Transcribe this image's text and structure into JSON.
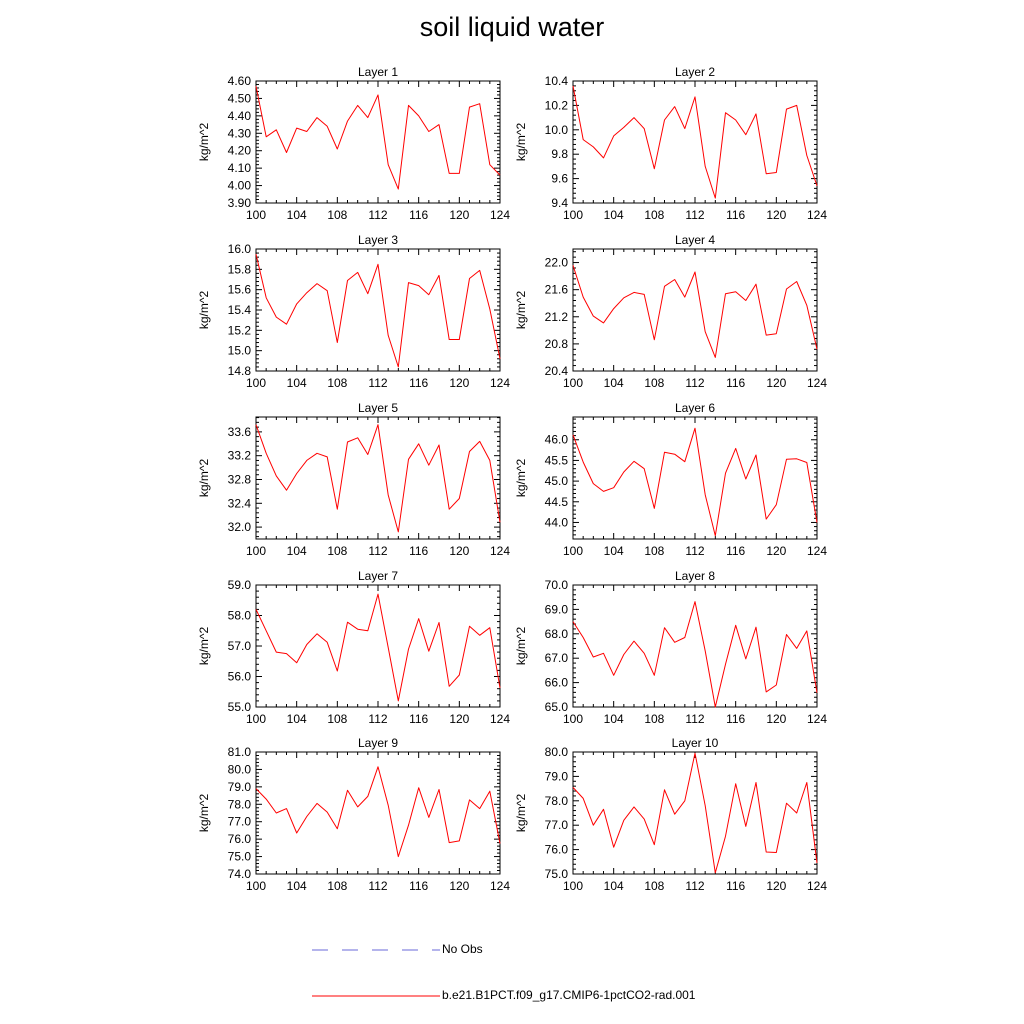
{
  "figure": {
    "title": "soil liquid water"
  },
  "legend": {
    "items": [
      {
        "label": "No Obs",
        "style": "dashed",
        "color": "#6a6ad8"
      },
      {
        "label": "b.e21.B1PCT.f09_g17.CMIP6-1pctCO2-rad.001",
        "style": "solid",
        "color": "#ff0000"
      }
    ]
  },
  "chart_data": [
    {
      "type": "line",
      "title": "Layer 1",
      "ylabel": "kg/m^2",
      "xlim": [
        100,
        124
      ],
      "x": [
        100,
        101,
        102,
        103,
        104,
        105,
        106,
        107,
        108,
        109,
        110,
        111,
        112,
        113,
        114,
        115,
        116,
        117,
        118,
        119,
        120,
        121,
        122,
        123,
        124
      ],
      "xticks": [
        "100",
        "104",
        "108",
        "112",
        "116",
        "120",
        "124"
      ],
      "ylim": [
        3.9,
        4.6
      ],
      "yticks": [
        "3.90",
        "4.00",
        "4.10",
        "4.20",
        "4.30",
        "4.40",
        "4.50",
        "4.60"
      ],
      "series": [
        {
          "color": "#ff0000",
          "values": [
            4.57,
            4.28,
            4.32,
            4.19,
            4.33,
            4.31,
            4.39,
            4.34,
            4.21,
            4.37,
            4.46,
            4.39,
            4.52,
            4.12,
            3.98,
            4.46,
            4.4,
            4.31,
            4.35,
            4.07,
            4.07,
            4.45,
            4.47,
            4.12,
            4.06
          ]
        }
      ]
    },
    {
      "type": "line",
      "title": "Layer 2",
      "ylabel": "kg/m^2",
      "xlim": [
        100,
        124
      ],
      "x": [
        100,
        101,
        102,
        103,
        104,
        105,
        106,
        107,
        108,
        109,
        110,
        111,
        112,
        113,
        114,
        115,
        116,
        117,
        118,
        119,
        120,
        121,
        122,
        123,
        124
      ],
      "xticks": [
        "100",
        "104",
        "108",
        "112",
        "116",
        "120",
        "124"
      ],
      "ylim": [
        9.4,
        10.4
      ],
      "yticks": [
        "9.4",
        "9.6",
        "9.8",
        "10.0",
        "10.2",
        "10.4"
      ],
      "series": [
        {
          "color": "#ff0000",
          "values": [
            10.36,
            9.92,
            9.86,
            9.77,
            9.95,
            10.02,
            10.1,
            10.01,
            9.68,
            10.08,
            10.19,
            10.01,
            10.27,
            9.7,
            9.44,
            10.14,
            10.08,
            9.96,
            10.13,
            9.64,
            9.65,
            10.17,
            10.2,
            9.79,
            9.54
          ]
        }
      ]
    },
    {
      "type": "line",
      "title": "Layer 3",
      "ylabel": "kg/m^2",
      "xlim": [
        100,
        124
      ],
      "x": [
        100,
        101,
        102,
        103,
        104,
        105,
        106,
        107,
        108,
        109,
        110,
        111,
        112,
        113,
        114,
        115,
        116,
        117,
        118,
        119,
        120,
        121,
        122,
        123,
        124
      ],
      "xticks": [
        "100",
        "104",
        "108",
        "112",
        "116",
        "120",
        "124"
      ],
      "ylim": [
        14.8,
        16.0
      ],
      "yticks": [
        "14.8",
        "15.0",
        "15.2",
        "15.4",
        "15.6",
        "15.8",
        "16.0"
      ],
      "series": [
        {
          "color": "#ff0000",
          "values": [
            15.95,
            15.52,
            15.33,
            15.26,
            15.46,
            15.57,
            15.66,
            15.59,
            15.08,
            15.69,
            15.77,
            15.56,
            15.85,
            15.15,
            14.84,
            15.67,
            15.64,
            15.55,
            15.74,
            15.11,
            15.11,
            15.71,
            15.79,
            15.41,
            14.92
          ]
        }
      ]
    },
    {
      "type": "line",
      "title": "Layer 4",
      "ylabel": "kg/m^2",
      "xlim": [
        100,
        124
      ],
      "x": [
        100,
        101,
        102,
        103,
        104,
        105,
        106,
        107,
        108,
        109,
        110,
        111,
        112,
        113,
        114,
        115,
        116,
        117,
        118,
        119,
        120,
        121,
        122,
        123,
        124
      ],
      "xticks": [
        "100",
        "104",
        "108",
        "112",
        "116",
        "120",
        "124"
      ],
      "ylim": [
        20.4,
        22.2
      ],
      "yticks": [
        "20.4",
        "20.8",
        "21.2",
        "21.6",
        "22.0"
      ],
      "series": [
        {
          "color": "#ff0000",
          "values": [
            21.96,
            21.49,
            21.21,
            21.11,
            21.32,
            21.48,
            21.56,
            21.53,
            20.86,
            21.65,
            21.75,
            21.49,
            21.86,
            20.98,
            20.6,
            21.54,
            21.57,
            21.44,
            21.68,
            20.93,
            20.95,
            21.61,
            21.72,
            21.37,
            20.72
          ]
        }
      ]
    },
    {
      "type": "line",
      "title": "Layer 5",
      "ylabel": "kg/m^2",
      "xlim": [
        100,
        124
      ],
      "x": [
        100,
        101,
        102,
        103,
        104,
        105,
        106,
        107,
        108,
        109,
        110,
        111,
        112,
        113,
        114,
        115,
        116,
        117,
        118,
        119,
        120,
        121,
        122,
        123,
        124
      ],
      "xticks": [
        "100",
        "104",
        "108",
        "112",
        "116",
        "120",
        "124"
      ],
      "ylim": [
        31.8,
        33.85
      ],
      "yticks": [
        "32.0",
        "32.4",
        "32.8",
        "33.2",
        "33.6"
      ],
      "series": [
        {
          "color": "#ff0000",
          "values": [
            33.72,
            33.24,
            32.86,
            32.62,
            32.9,
            33.12,
            33.24,
            33.18,
            32.3,
            33.43,
            33.5,
            33.22,
            33.72,
            32.54,
            31.92,
            33.14,
            33.4,
            33.04,
            33.38,
            32.3,
            32.48,
            33.27,
            33.44,
            33.12,
            32.08
          ]
        }
      ]
    },
    {
      "type": "line",
      "title": "Layer 6",
      "ylabel": "kg/m^2",
      "xlim": [
        100,
        124
      ],
      "x": [
        100,
        101,
        102,
        103,
        104,
        105,
        106,
        107,
        108,
        109,
        110,
        111,
        112,
        113,
        114,
        115,
        116,
        117,
        118,
        119,
        120,
        121,
        122,
        123,
        124
      ],
      "xticks": [
        "100",
        "104",
        "108",
        "112",
        "116",
        "120",
        "124"
      ],
      "ylim": [
        43.6,
        46.55
      ],
      "yticks": [
        "44.0",
        "44.5",
        "45.0",
        "45.5",
        "46.0"
      ],
      "series": [
        {
          "color": "#ff0000",
          "values": [
            46.12,
            45.46,
            44.94,
            44.75,
            44.84,
            45.22,
            45.48,
            45.3,
            44.34,
            45.7,
            45.65,
            45.47,
            46.28,
            44.67,
            43.68,
            45.19,
            45.79,
            45.05,
            45.63,
            44.08,
            44.43,
            45.53,
            45.54,
            45.45,
            44.0
          ]
        }
      ]
    },
    {
      "type": "line",
      "title": "Layer 7",
      "ylabel": "kg/m^2",
      "xlim": [
        100,
        124
      ],
      "x": [
        100,
        101,
        102,
        103,
        104,
        105,
        106,
        107,
        108,
        109,
        110,
        111,
        112,
        113,
        114,
        115,
        116,
        117,
        118,
        119,
        120,
        121,
        122,
        123,
        124
      ],
      "xticks": [
        "100",
        "104",
        "108",
        "112",
        "116",
        "120",
        "124"
      ],
      "ylim": [
        55.0,
        59.0
      ],
      "yticks": [
        "55.0",
        "56.0",
        "57.0",
        "58.0",
        "59.0"
      ],
      "series": [
        {
          "color": "#ff0000",
          "values": [
            58.2,
            57.5,
            56.8,
            56.75,
            56.45,
            57.05,
            57.4,
            57.12,
            56.18,
            57.78,
            57.55,
            57.5,
            58.7,
            56.95,
            55.2,
            56.9,
            57.9,
            56.83,
            57.77,
            55.68,
            56.05,
            57.65,
            57.35,
            57.6,
            55.62
          ]
        }
      ]
    },
    {
      "type": "line",
      "title": "Layer 8",
      "ylabel": "kg/m^2",
      "xlim": [
        100,
        124
      ],
      "x": [
        100,
        101,
        102,
        103,
        104,
        105,
        106,
        107,
        108,
        109,
        110,
        111,
        112,
        113,
        114,
        115,
        116,
        117,
        118,
        119,
        120,
        121,
        122,
        123,
        124
      ],
      "xticks": [
        "100",
        "104",
        "108",
        "112",
        "116",
        "120",
        "124"
      ],
      "ylim": [
        65.0,
        70.0
      ],
      "yticks": [
        "65.0",
        "66.0",
        "67.0",
        "68.0",
        "69.0",
        "70.0"
      ],
      "series": [
        {
          "color": "#ff0000",
          "values": [
            68.5,
            67.85,
            67.05,
            67.2,
            66.3,
            67.15,
            67.7,
            67.2,
            66.3,
            68.25,
            67.65,
            67.85,
            69.32,
            67.3,
            65.0,
            66.75,
            68.35,
            66.97,
            68.27,
            65.62,
            65.9,
            67.97,
            67.4,
            68.12,
            65.58
          ]
        }
      ]
    },
    {
      "type": "line",
      "title": "Layer 9",
      "ylabel": "kg/m^2",
      "xlim": [
        100,
        124
      ],
      "x": [
        100,
        101,
        102,
        103,
        104,
        105,
        106,
        107,
        108,
        109,
        110,
        111,
        112,
        113,
        114,
        115,
        116,
        117,
        118,
        119,
        120,
        121,
        122,
        123,
        124
      ],
      "xticks": [
        "100",
        "104",
        "108",
        "112",
        "116",
        "120",
        "124"
      ],
      "ylim": [
        74.0,
        81.0
      ],
      "yticks": [
        "74.0",
        "75.0",
        "76.0",
        "77.0",
        "78.0",
        "79.0",
        "80.0",
        "81.0"
      ],
      "series": [
        {
          "color": "#ff0000",
          "values": [
            78.9,
            78.3,
            77.5,
            77.75,
            76.35,
            77.3,
            78.05,
            77.55,
            76.6,
            78.8,
            77.85,
            78.45,
            80.15,
            77.95,
            75.0,
            76.8,
            78.95,
            77.25,
            78.85,
            75.8,
            75.9,
            78.25,
            77.75,
            78.75,
            75.75
          ]
        }
      ]
    },
    {
      "type": "line",
      "title": "Layer 10",
      "ylabel": "kg/m^2",
      "xlim": [
        100,
        124
      ],
      "x": [
        100,
        101,
        102,
        103,
        104,
        105,
        106,
        107,
        108,
        109,
        110,
        111,
        112,
        113,
        114,
        115,
        116,
        117,
        118,
        119,
        120,
        121,
        122,
        123,
        124
      ],
      "xticks": [
        "100",
        "104",
        "108",
        "112",
        "116",
        "120",
        "124"
      ],
      "ylim": [
        75.0,
        80.0
      ],
      "yticks": [
        "75.0",
        "76.0",
        "77.0",
        "78.0",
        "79.0",
        "80.0"
      ],
      "series": [
        {
          "color": "#ff0000",
          "values": [
            78.55,
            78.1,
            77.0,
            77.65,
            76.1,
            77.2,
            77.75,
            77.25,
            76.2,
            78.45,
            77.45,
            78.0,
            79.95,
            77.8,
            75.05,
            76.55,
            78.7,
            76.95,
            78.75,
            75.9,
            75.88,
            77.9,
            77.5,
            78.75,
            75.45
          ]
        }
      ]
    }
  ]
}
